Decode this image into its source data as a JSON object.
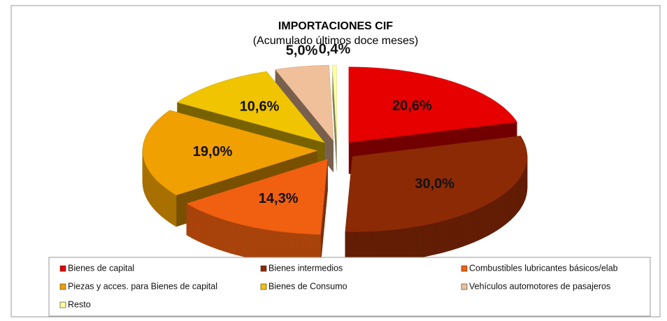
{
  "chart_data": {
    "type": "pie3d",
    "title": "IMPORTACIONES CIF",
    "subtitle": "(Acumulado últimos doce meses)",
    "categories": [
      "Bienes  de capital",
      "Bienes  intermedios",
      "Combustibles lubricantes básicos/elab",
      "Piezas y acces. para Bienes  de capital",
      "Bienes de  Consumo",
      "Vehículos automotores de pasajeros",
      "Resto"
    ],
    "values": [
      20.6,
      30.0,
      14.3,
      19.0,
      10.6,
      5.0,
      0.4
    ],
    "value_labels": [
      "20,6%",
      "30,0%",
      "14,3%",
      "19,0%",
      "10,6%",
      "5,0%",
      "0,4%"
    ],
    "colors": [
      "#e60000",
      "#8c2a05",
      "#f06010",
      "#f0a000",
      "#f0c400",
      "#f0c09a",
      "#ffffa0"
    ]
  }
}
